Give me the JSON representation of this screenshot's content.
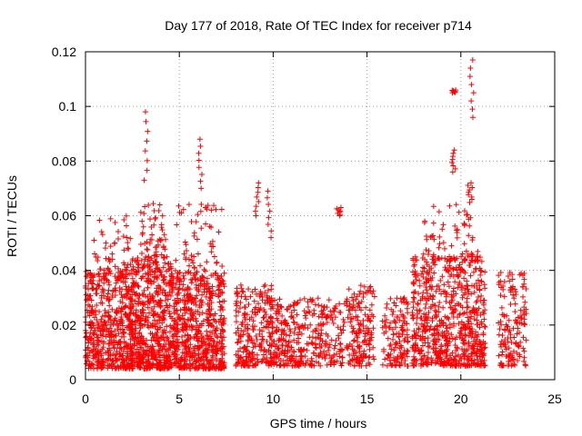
{
  "chart_data": {
    "type": "scatter",
    "title": "Day 177 of 2018, Rate Of TEC Index for receiver p714",
    "xlabel": "GPS time / hours",
    "ylabel": "ROTI / TECUs",
    "xlim": [
      0,
      25
    ],
    "ylim": [
      0,
      0.12
    ],
    "xticks": [
      0,
      5,
      10,
      15,
      20,
      25
    ],
    "yticks": [
      0,
      0.02,
      0.04,
      0.06,
      0.08,
      0.1,
      0.12
    ],
    "xtick_labels": [
      "0",
      "5",
      "10",
      "15",
      "20",
      "25"
    ],
    "ytick_labels": [
      "0",
      "0.02",
      "0.04",
      "0.06",
      "0.08",
      "0.1",
      "0.12"
    ],
    "grid": true,
    "marker": "+",
    "color": "#ff0000",
    "clusters": [
      {
        "x": [
          0.0,
          2.5
        ],
        "y": [
          0.004,
          0.04
        ],
        "n": 520
      },
      {
        "x": [
          0.4,
          2.4
        ],
        "y": [
          0.04,
          0.06
        ],
        "n": 45
      },
      {
        "x": [
          2.4,
          4.6
        ],
        "y": [
          0.004,
          0.045
        ],
        "n": 560
      },
      {
        "x": [
          2.9,
          4.3
        ],
        "y": [
          0.045,
          0.065
        ],
        "n": 50
      },
      {
        "x": [
          4.6,
          7.4
        ],
        "y": [
          0.004,
          0.04
        ],
        "n": 620
      },
      {
        "x": [
          4.8,
          7.3
        ],
        "y": [
          0.04,
          0.065
        ],
        "n": 55
      },
      {
        "x": [
          8.0,
          10.0
        ],
        "y": [
          0.005,
          0.035
        ],
        "n": 260
      },
      {
        "x": [
          10.0,
          12.0
        ],
        "y": [
          0.005,
          0.03
        ],
        "n": 200
      },
      {
        "x": [
          12.0,
          14.0
        ],
        "y": [
          0.005,
          0.03
        ],
        "n": 150
      },
      {
        "x": [
          14.0,
          15.4
        ],
        "y": [
          0.005,
          0.035
        ],
        "n": 150
      },
      {
        "x": [
          15.8,
          17.2
        ],
        "y": [
          0.005,
          0.03
        ],
        "n": 130
      },
      {
        "x": [
          17.4,
          21.3
        ],
        "y": [
          0.005,
          0.045
        ],
        "n": 700
      },
      {
        "x": [
          18.0,
          21.0
        ],
        "y": [
          0.045,
          0.065
        ],
        "n": 60
      },
      {
        "x": [
          22.0,
          23.5
        ],
        "y": [
          0.005,
          0.04
        ],
        "n": 150
      }
    ],
    "spikes": [
      {
        "x": 3.2,
        "y": [
          0.073,
          0.098
        ]
      },
      {
        "x": 6.1,
        "y": [
          0.07,
          0.088
        ]
      },
      {
        "x": 9.1,
        "y": [
          0.06,
          0.072
        ]
      },
      {
        "x": 9.8,
        "y": [
          0.052,
          0.069
        ]
      },
      {
        "x": 13.5,
        "y": [
          0.06,
          0.063
        ]
      },
      {
        "x": 19.6,
        "y": [
          0.076,
          0.084
        ]
      },
      {
        "x": 19.6,
        "y": [
          0.105,
          0.106
        ]
      },
      {
        "x": 20.5,
        "y": [
          0.066,
          0.072
        ]
      },
      {
        "x": 20.6,
        "y": [
          0.096,
          0.117
        ]
      }
    ]
  }
}
